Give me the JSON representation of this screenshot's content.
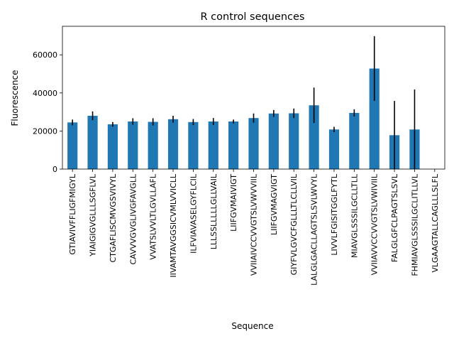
{
  "chart_data": {
    "type": "bar",
    "title": "R control sequences",
    "xlabel": "Sequence",
    "ylabel": "Fluorescence",
    "ylim": [
      0,
      75000
    ],
    "yticks": [
      0,
      20000,
      40000,
      60000
    ],
    "grid": false,
    "legend": "none",
    "bar_color": "#1f77b4",
    "error_color": "#000000",
    "categories": [
      "GTIAVIVFFLIGFMIGYL",
      "YIAIGIGVGLLLSGFLVL",
      "CTGAFLISCMVGSVIVYL",
      "CAVVVGVGLIVGFAVGLL",
      "VVATSLVVLTLGVLLAFL",
      "IIVAMTAVGGSICVMLVVICLL",
      "ILFVIAVASELGYFLCIL",
      "LLLSSLLLLLGLLVAIL",
      "LIIFGVMAIVIGT",
      "VVIIAIVCCVVGTSLVWVVIIL",
      "LIIFGVMAGVIGT",
      "GIYFVLGVCFGLLLTLCLLVIL",
      "LALGLGACLLAGTSLSVLWVYL",
      "LIVVLFGISITGGLFYTL",
      "MIAVGLSSSILGCLLTLL",
      "VVIIAVVCCVVGTSLVWIVIIL",
      "FALGLGFCLPAGTSLSVL",
      "FHMIAVGLSSSILGCLITLLVL",
      "VLGAAGTALLCAGLLLSLFL"
    ],
    "values": [
      24500,
      28000,
      23500,
      25000,
      24800,
      26200,
      24700,
      25000,
      25000,
      26800,
      29200,
      29300,
      33500,
      20800,
      29500,
      52800,
      17800,
      20800,
      null
    ],
    "errors": [
      1500,
      2300,
      1200,
      1700,
      1900,
      1800,
      1600,
      1800,
      1000,
      2400,
      1800,
      2500,
      9300,
      1400,
      1900,
      17000,
      18000,
      21000,
      null
    ]
  }
}
